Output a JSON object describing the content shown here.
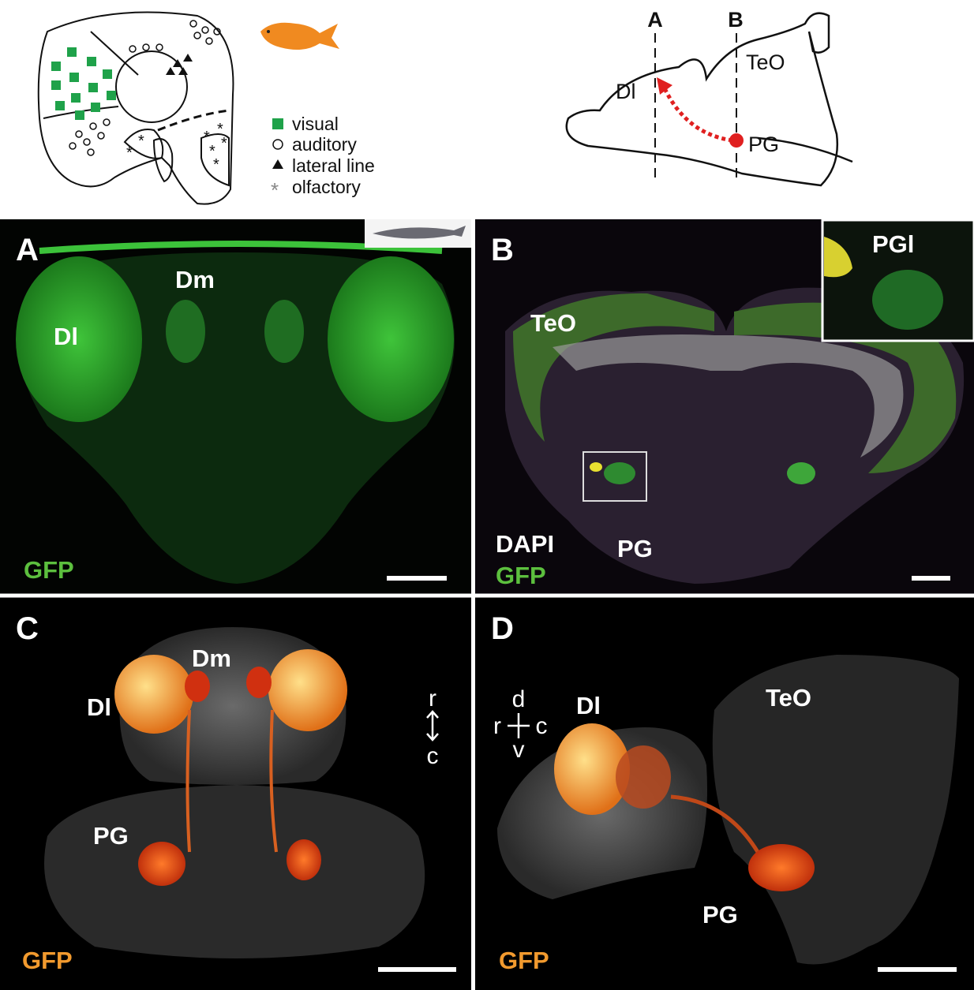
{
  "schematic": {
    "legend": [
      "visual",
      "auditory",
      "lateral line",
      "olfactory"
    ],
    "section_labels": [
      "A",
      "B"
    ],
    "regions": [
      "Dl",
      "TeO",
      "PG"
    ]
  },
  "panels": [
    {
      "letter": "A",
      "labels": [
        "Dm",
        "Dl"
      ],
      "stain": [
        "GFP"
      ]
    },
    {
      "letter": "B",
      "labels": [
        "TeO",
        "PG",
        "PGl"
      ],
      "stain": [
        "DAPI",
        "GFP"
      ]
    },
    {
      "letter": "C",
      "labels": [
        "Dm",
        "Dl",
        "PG"
      ],
      "stain": [
        "GFP"
      ],
      "axes": [
        "r",
        "c"
      ]
    },
    {
      "letter": "D",
      "labels": [
        "Dl",
        "TeO",
        "PG"
      ],
      "stain": [
        "GFP"
      ],
      "axes": [
        "d",
        "r",
        "c",
        "v"
      ]
    }
  ]
}
